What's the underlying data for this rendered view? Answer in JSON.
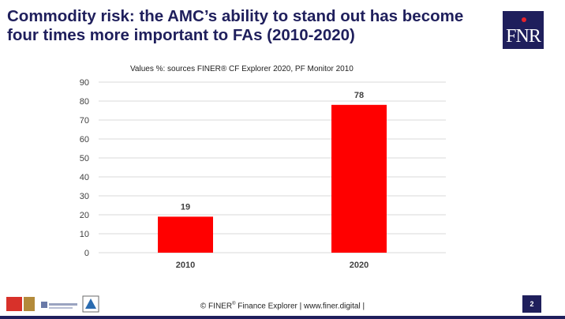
{
  "header": {
    "title": "Commodity risk: the AMC’s ability to stand out has become four times more important to FAs (2010-2020)",
    "logo_text": "FNR"
  },
  "chart_data": {
    "type": "bar",
    "title": "Values %: sources FINER® CF Explorer 2020, PF Monitor 2010",
    "categories": [
      "2010",
      "2020"
    ],
    "values": [
      19,
      78
    ],
    "data_labels": [
      "19",
      "78"
    ],
    "ylim": [
      0,
      90
    ],
    "yticks": [
      "0",
      "10",
      "20",
      "30",
      "40",
      "50",
      "60",
      "70",
      "80",
      "90"
    ],
    "grid": true,
    "bar_color": "#ff0000"
  },
  "footer": {
    "text_prefix": "© FINER",
    "text_suffix": " Finance Explorer | www.finer.digital |",
    "page_number": "2"
  },
  "colors": {
    "brand": "#1f1f5c",
    "accent": "#e8232a"
  }
}
